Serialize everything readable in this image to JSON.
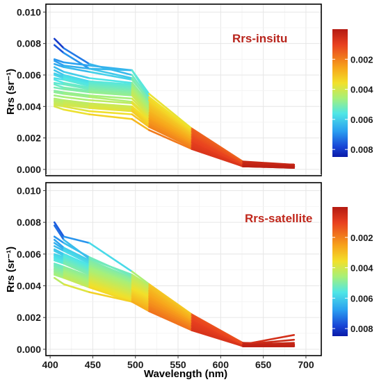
{
  "chart_data": {
    "type": "line",
    "xlabel": "Wavelength (nm)",
    "x_ticks": [
      400,
      450,
      500,
      550,
      600,
      650,
      700
    ],
    "xlim": [
      395,
      718
    ],
    "ylabel": "Rrs (sr⁻¹)",
    "y_ticks": [
      "0.000",
      "0.002",
      "0.004",
      "0.006",
      "0.008",
      "0.010"
    ],
    "ylim": [
      -0.0004,
      0.0105
    ],
    "grid": true,
    "wavelengths": [
      405,
      416,
      446,
      496,
      516,
      566,
      626,
      686
    ],
    "colorbar": {
      "ticks": [
        "0.002",
        "0.004",
        "0.006",
        "0.008"
      ],
      "range_top_to_bottom": [
        0,
        0.0085
      ],
      "colormap": "jet (red at top, blue at bottom)"
    },
    "panels": [
      {
        "title": "Rrs-insitu",
        "title_color": "#b8241c",
        "series": [
          {
            "values": [
              0.0083,
              0.0077,
              0.0067,
              0.006,
              0.0045,
              0.0025,
              0.0004,
              0.0003
            ]
          },
          {
            "values": [
              0.0079,
              0.0074,
              0.0064,
              0.0058,
              0.0043,
              0.0024,
              0.0004,
              0.0003
            ]
          },
          {
            "values": [
              0.007,
              0.0068,
              0.0066,
              0.0063,
              0.0048,
              0.0026,
              0.0005,
              0.0003
            ]
          },
          {
            "values": [
              0.0069,
              0.0066,
              0.0064,
              0.0063,
              0.0046,
              0.0025,
              0.0004,
              0.0003
            ]
          },
          {
            "values": [
              0.0067,
              0.0065,
              0.0062,
              0.0057,
              0.0044,
              0.0024,
              0.0004,
              0.0003
            ]
          },
          {
            "values": [
              0.0065,
              0.0062,
              0.0058,
              0.0055,
              0.0042,
              0.0023,
              0.0004,
              0.0003
            ]
          },
          {
            "values": [
              0.0063,
              0.006,
              0.0056,
              0.0054,
              0.0041,
              0.0022,
              0.0004,
              0.0003
            ]
          },
          {
            "values": [
              0.0061,
              0.0059,
              0.0055,
              0.0053,
              0.004,
              0.0022,
              0.0004,
              0.0003
            ]
          },
          {
            "values": [
              0.006,
              0.0058,
              0.0054,
              0.0052,
              0.0039,
              0.0021,
              0.0003,
              0.0002
            ]
          },
          {
            "values": [
              0.0058,
              0.0057,
              0.0053,
              0.0051,
              0.0038,
              0.0021,
              0.0003,
              0.0002
            ]
          },
          {
            "values": [
              0.0057,
              0.0055,
              0.0052,
              0.005,
              0.0037,
              0.002,
              0.0003,
              0.0002
            ]
          },
          {
            "values": [
              0.0055,
              0.0054,
              0.0051,
              0.0049,
              0.0036,
              0.002,
              0.0003,
              0.0002
            ]
          },
          {
            "values": [
              0.0054,
              0.0052,
              0.005,
              0.0048,
              0.0036,
              0.0019,
              0.0003,
              0.0002
            ]
          },
          {
            "values": [
              0.0052,
              0.0051,
              0.0049,
              0.0047,
              0.0035,
              0.0019,
              0.0003,
              0.0002
            ]
          },
          {
            "values": [
              0.005,
              0.0049,
              0.0047,
              0.0045,
              0.0034,
              0.0018,
              0.0003,
              0.0002
            ]
          },
          {
            "values": [
              0.0049,
              0.0048,
              0.0046,
              0.0043,
              0.0033,
              0.0018,
              0.0003,
              0.0002
            ]
          },
          {
            "values": [
              0.0047,
              0.0046,
              0.0044,
              0.0042,
              0.0032,
              0.0017,
              0.0002,
              0.0002
            ]
          },
          {
            "values": [
              0.0045,
              0.0044,
              0.0042,
              0.004,
              0.0031,
              0.0016,
              0.0002,
              0.0002
            ]
          },
          {
            "values": [
              0.0044,
              0.0043,
              0.0041,
              0.0039,
              0.003,
              0.0016,
              0.0002,
              0.0002
            ]
          },
          {
            "values": [
              0.0043,
              0.0042,
              0.004,
              0.0038,
              0.0029,
              0.0015,
              0.0002,
              0.0002
            ]
          },
          {
            "values": [
              0.0042,
              0.0041,
              0.0039,
              0.0037,
              0.0028,
              0.0015,
              0.0002,
              0.0002
            ]
          },
          {
            "values": [
              0.0041,
              0.004,
              0.0037,
              0.0035,
              0.0027,
              0.0014,
              0.0002,
              0.0001
            ]
          },
          {
            "values": [
              0.004,
              0.0038,
              0.0035,
              0.0032,
              0.0025,
              0.0013,
              0.0002,
              0.0001
            ]
          }
        ]
      },
      {
        "title": "Rrs-satellite",
        "title_color": "#c0271b",
        "series": [
          {
            "values": [
              0.008,
              0.0071,
              0.0067,
              0.0049,
              0.0041,
              0.0022,
              0.0004,
              0.0003
            ]
          },
          {
            "values": [
              0.0078,
              0.0069,
              0.0057,
              0.0047,
              0.004,
              0.0021,
              0.0004,
              0.0003
            ]
          },
          {
            "values": [
              0.0071,
              0.0067,
              0.0058,
              0.0046,
              0.0039,
              0.0021,
              0.0003,
              0.0004
            ]
          },
          {
            "values": [
              0.0069,
              0.0064,
              0.0056,
              0.0045,
              0.0039,
              0.0021,
              0.0003,
              0.0006
            ]
          },
          {
            "values": [
              0.0067,
              0.0063,
              0.0055,
              0.0044,
              0.0038,
              0.002,
              0.0003,
              0.0009
            ]
          },
          {
            "values": [
              0.0065,
              0.0062,
              0.0054,
              0.0044,
              0.0038,
              0.002,
              0.0003,
              0.0003
            ]
          },
          {
            "values": [
              0.0063,
              0.006,
              0.0053,
              0.0043,
              0.0037,
              0.002,
              0.0003,
              0.0003
            ]
          },
          {
            "values": [
              0.0062,
              0.0059,
              0.0052,
              0.0042,
              0.0037,
              0.0019,
              0.0003,
              0.0003
            ]
          },
          {
            "values": [
              0.006,
              0.0058,
              0.0051,
              0.0041,
              0.0036,
              0.0019,
              0.0003,
              0.0003
            ]
          },
          {
            "values": [
              0.0059,
              0.0057,
              0.005,
              0.0041,
              0.0036,
              0.0019,
              0.0003,
              0.0002
            ]
          },
          {
            "values": [
              0.0058,
              0.0056,
              0.0049,
              0.004,
              0.0035,
              0.0018,
              0.0002,
              0.0002
            ]
          },
          {
            "values": [
              0.0057,
              0.0055,
              0.0048,
              0.0039,
              0.0034,
              0.0018,
              0.0002,
              0.0002
            ]
          },
          {
            "values": [
              0.0056,
              0.0054,
              0.0047,
              0.0038,
              0.0033,
              0.0017,
              0.0002,
              0.0002
            ]
          },
          {
            "values": [
              0.0054,
              0.0052,
              0.0046,
              0.0037,
              0.0032,
              0.0017,
              0.0002,
              0.0002
            ]
          },
          {
            "values": [
              0.0053,
              0.0051,
              0.0045,
              0.0036,
              0.0031,
              0.0016,
              0.0002,
              0.0002
            ]
          },
          {
            "values": [
              0.0052,
              0.005,
              0.0044,
              0.0035,
              0.003,
              0.0016,
              0.0002,
              0.0002
            ]
          },
          {
            "values": [
              0.0051,
              0.0049,
              0.0043,
              0.0034,
              0.0029,
              0.0015,
              0.0002,
              0.0002
            ]
          },
          {
            "values": [
              0.005,
              0.0048,
              0.0042,
              0.0033,
              0.0028,
              0.0015,
              0.0002,
              0.0002
            ]
          },
          {
            "values": [
              0.0049,
              0.0047,
              0.0041,
              0.0032,
              0.0027,
              0.0014,
              0.0002,
              0.0002
            ]
          },
          {
            "values": [
              0.0048,
              0.0046,
              0.004,
              0.0031,
              0.0026,
              0.0013,
              0.0002,
              0.0002
            ]
          },
          {
            "values": [
              0.0047,
              0.0045,
              0.0039,
              0.003,
              0.0025,
              0.0013,
              0.0002,
              0.0002
            ]
          },
          {
            "values": [
              0.0045,
              0.0041,
              0.0036,
              0.003,
              0.0024,
              0.0012,
              0.0002,
              0.0002
            ]
          }
        ]
      }
    ]
  }
}
